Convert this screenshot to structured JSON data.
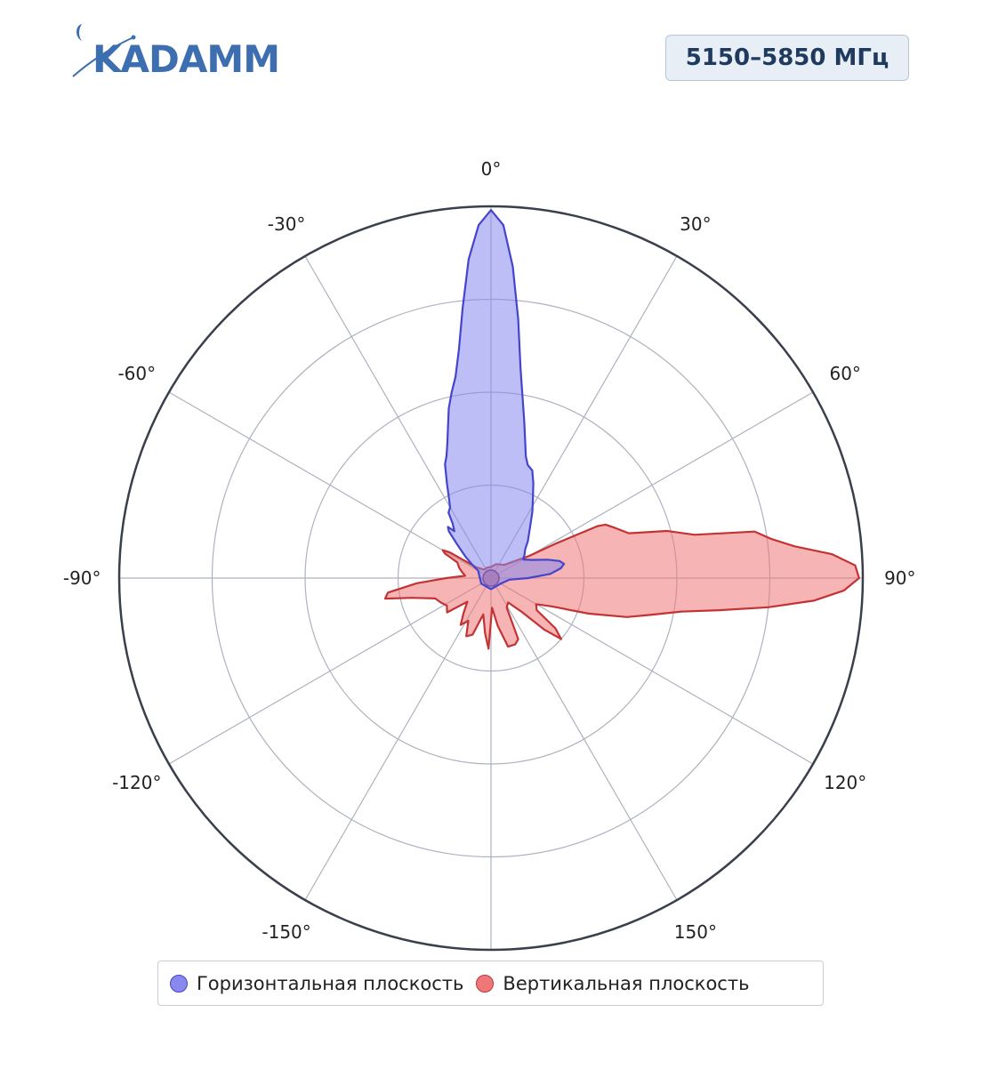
{
  "header": {
    "logo_text": "KADAMM",
    "frequency_label": "5150–5850 МГц"
  },
  "legend": {
    "items": [
      {
        "label": "Горизонтальная плоскость",
        "color": "#8888ee"
      },
      {
        "label": "Вертикальная плоскость",
        "color": "#ee7777"
      }
    ]
  },
  "chart_data": {
    "type": "polar",
    "angle_ticks": [
      "0°",
      "30°",
      "60°",
      "90°",
      "120°",
      "150°",
      "-150°",
      "-120°",
      "-90°",
      "-60°",
      "-30°"
    ],
    "r_range": [
      0,
      1
    ],
    "grid": true,
    "legend_position": "bottom",
    "series": [
      {
        "name": "Горизонтальная плоскость",
        "color": "#4444cc",
        "fill": "#8888ee",
        "points": [
          [
            -55,
            0.06
          ],
          [
            -50,
            0.09
          ],
          [
            -45,
            0.13
          ],
          [
            -42,
            0.17
          ],
          [
            -40,
            0.18
          ],
          [
            -38,
            0.16
          ],
          [
            -35,
            0.18
          ],
          [
            -33,
            0.21
          ],
          [
            -30,
            0.22
          ],
          [
            -28,
            0.24
          ],
          [
            -25,
            0.28
          ],
          [
            -22,
            0.33
          ],
          [
            -20,
            0.35
          ],
          [
            -18,
            0.38
          ],
          [
            -16,
            0.42
          ],
          [
            -14,
            0.47
          ],
          [
            -12,
            0.51
          ],
          [
            -10,
            0.55
          ],
          [
            -8,
            0.62
          ],
          [
            -6,
            0.73
          ],
          [
            -4,
            0.86
          ],
          [
            -2,
            0.95
          ],
          [
            0,
            0.99
          ],
          [
            2,
            0.95
          ],
          [
            4,
            0.84
          ],
          [
            6,
            0.7
          ],
          [
            8,
            0.57
          ],
          [
            10,
            0.49
          ],
          [
            12,
            0.43
          ],
          [
            14,
            0.38
          ],
          [
            16,
            0.34
          ],
          [
            18,
            0.32
          ],
          [
            21,
            0.31
          ],
          [
            24,
            0.28
          ],
          [
            28,
            0.24
          ],
          [
            32,
            0.21
          ],
          [
            38,
            0.17
          ],
          [
            45,
            0.14
          ],
          [
            50,
            0.12
          ],
          [
            55,
            0.11
          ],
          [
            60,
            0.1
          ],
          [
            66,
            0.12
          ],
          [
            72,
            0.16
          ],
          [
            76,
            0.19
          ],
          [
            79,
            0.2
          ],
          [
            82,
            0.19
          ],
          [
            86,
            0.16
          ],
          [
            90,
            0.1
          ],
          [
            95,
            0.05
          ],
          [
            120,
            0.03
          ],
          [
            180,
            0.03
          ],
          [
            -120,
            0.03
          ],
          [
            -90,
            0.03
          ],
          [
            -60,
            0.04
          ]
        ]
      },
      {
        "name": "Вертикальная плоскость",
        "color": "#c33333",
        "fill": "#ee7777",
        "points": [
          [
            60,
            0.12
          ],
          [
            62,
            0.2
          ],
          [
            64,
            0.32
          ],
          [
            65,
            0.34
          ],
          [
            68,
            0.36
          ],
          [
            72,
            0.39
          ],
          [
            75,
            0.49
          ],
          [
            78,
            0.56
          ],
          [
            80,
            0.72
          ],
          [
            82,
            0.76
          ],
          [
            84,
            0.82
          ],
          [
            86,
            0.92
          ],
          [
            88,
            0.98
          ],
          [
            90,
            0.99
          ],
          [
            92,
            0.95
          ],
          [
            94,
            0.87
          ],
          [
            96,
            0.75
          ],
          [
            98,
            0.62
          ],
          [
            100,
            0.52
          ],
          [
            103,
            0.44
          ],
          [
            106,
            0.38
          ],
          [
            110,
            0.28
          ],
          [
            115,
            0.18
          ],
          [
            120,
            0.14
          ],
          [
            125,
            0.15
          ],
          [
            128,
            0.22
          ],
          [
            131,
            0.25
          ],
          [
            134,
            0.2
          ],
          [
            138,
            0.12
          ],
          [
            145,
            0.08
          ],
          [
            152,
            0.09
          ],
          [
            156,
            0.18
          ],
          [
            160,
            0.19
          ],
          [
            166,
            0.19
          ],
          [
            172,
            0.13
          ],
          [
            178,
            0.08
          ],
          [
            182,
            0.19
          ],
          [
            186,
            0.15
          ],
          [
            192,
            0.1
          ],
          [
            198,
            0.16
          ],
          [
            203,
            0.17
          ],
          [
            208,
            0.13
          ],
          [
            213,
            0.15
          ],
          [
            218,
            0.12
          ],
          [
            225,
            0.09
          ],
          [
            232,
            0.15
          ],
          [
            238,
            0.14
          ],
          [
            244,
            0.15
          ],
          [
            250,
            0.16
          ],
          [
            256,
            0.22
          ],
          [
            259,
            0.29
          ],
          [
            262,
            0.28
          ],
          [
            266,
            0.2
          ],
          [
            270,
            0.12
          ],
          [
            275,
            0.07
          ],
          [
            282,
            0.08
          ],
          [
            288,
            0.09
          ],
          [
            295,
            0.1
          ],
          [
            298,
            0.14
          ],
          [
            300,
            0.15
          ],
          [
            302,
            0.13
          ],
          [
            306,
            0.05
          ],
          [
            320,
            0.03
          ],
          [
            340,
            0.03
          ],
          [
            0,
            0.03
          ],
          [
            20,
            0.04
          ],
          [
            45,
            0.05
          ]
        ]
      }
    ]
  }
}
